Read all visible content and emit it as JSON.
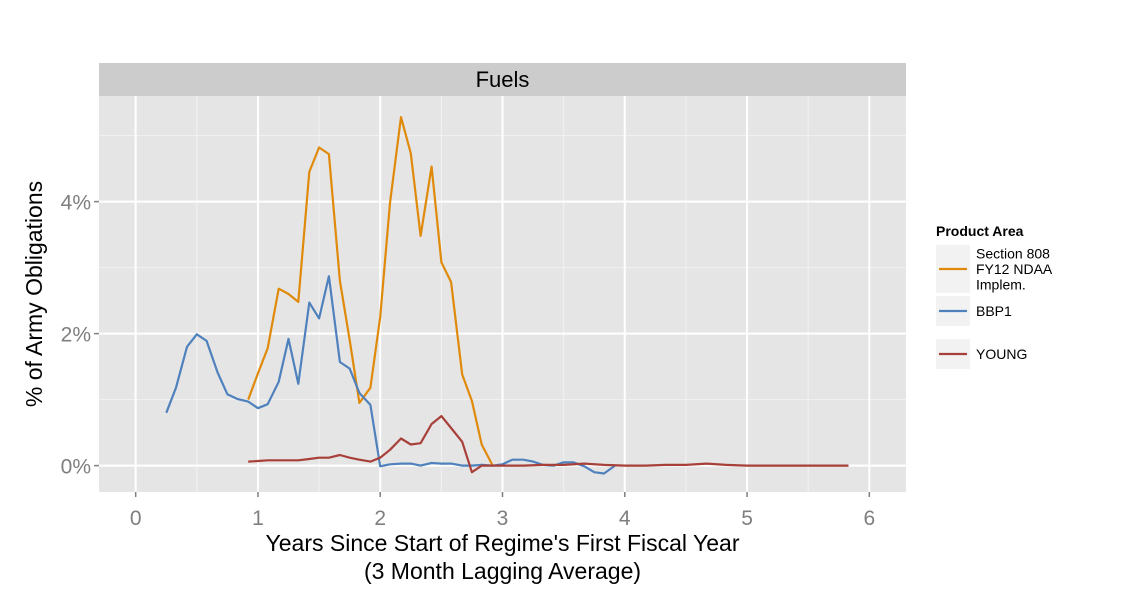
{
  "chart_data": {
    "type": "line",
    "facet": "Fuels",
    "xlabel": "Years Since Start of Regime's First Fiscal Year",
    "xlabel2": "(3 Month Lagging Average)",
    "ylabel": "% of Army Obligations",
    "xlim": [
      -0.3,
      6.3
    ],
    "ylim": [
      -0.004,
      0.056
    ],
    "xticks": [
      0,
      1,
      2,
      3,
      4,
      5,
      6
    ],
    "xtick_labels": [
      "0",
      "1",
      "2",
      "3",
      "4",
      "5",
      "6"
    ],
    "yticks": [
      0,
      0.02,
      0.04
    ],
    "ytick_labels": [
      "0%",
      "2%",
      "4%"
    ],
    "grid": true,
    "legend": {
      "title": "Product Area",
      "position": "right",
      "entries": [
        {
          "label": [
            "Section 808",
            "FY12 NDAA",
            "Implem."
          ],
          "color": "#E08A0B"
        },
        {
          "label": [
            "BBP1"
          ],
          "color": "#4F81BD"
        },
        {
          "label": [
            "YOUNG"
          ],
          "color": "#A8403A"
        }
      ]
    },
    "series": [
      {
        "name": "Section 808 FY12 NDAA Implem.",
        "color": "#E08A0B",
        "x": [
          0.92,
          1.0,
          1.08,
          1.17,
          1.25,
          1.33,
          1.42,
          1.5,
          1.58,
          1.67,
          1.75,
          1.83,
          1.92,
          2.0,
          2.08,
          2.17,
          2.25,
          2.33,
          2.42,
          2.5,
          2.58,
          2.67,
          2.75,
          2.83,
          2.92
        ],
        "y": [
          0.01,
          0.014,
          0.0178,
          0.0268,
          0.026,
          0.0248,
          0.0445,
          0.0482,
          0.0472,
          0.028,
          0.019,
          0.0095,
          0.0118,
          0.0225,
          0.0398,
          0.0528,
          0.0473,
          0.0348,
          0.0453,
          0.0308,
          0.0278,
          0.0138,
          0.0098,
          0.0032,
          0.0
        ]
      },
      {
        "name": "BBP1",
        "color": "#4F81BD",
        "x": [
          0.25,
          0.33,
          0.42,
          0.5,
          0.58,
          0.67,
          0.75,
          0.83,
          0.92,
          1.0,
          1.08,
          1.17,
          1.25,
          1.33,
          1.42,
          1.5,
          1.58,
          1.67,
          1.75,
          1.83,
          1.92,
          2.0,
          2.08,
          2.17,
          2.25,
          2.33,
          2.42,
          2.5,
          2.58,
          2.67,
          2.75,
          2.83,
          2.92,
          3.0,
          3.08,
          3.17,
          3.25,
          3.33,
          3.42,
          3.5,
          3.58,
          3.67,
          3.75,
          3.83,
          3.92
        ],
        "y": [
          0.008,
          0.0118,
          0.018,
          0.0199,
          0.0189,
          0.0141,
          0.0108,
          0.0101,
          0.0097,
          0.0087,
          0.0093,
          0.0127,
          0.0192,
          0.0124,
          0.0247,
          0.0223,
          0.0287,
          0.0157,
          0.0147,
          0.011,
          0.0092,
          -0.0001,
          0.0002,
          0.0003,
          0.0003,
          0.0,
          0.0004,
          0.0003,
          0.0003,
          0.0,
          0.0,
          0.0001,
          0.0,
          0.0002,
          0.0009,
          0.0009,
          0.0006,
          0.0001,
          0.0,
          0.0005,
          0.0005,
          -0.0001,
          -0.001,
          -0.0012,
          0.0
        ]
      },
      {
        "name": "YOUNG",
        "color": "#A8403A",
        "x": [
          0.92,
          1.0,
          1.08,
          1.17,
          1.25,
          1.33,
          1.42,
          1.5,
          1.58,
          1.67,
          1.75,
          1.83,
          1.92,
          2.0,
          2.08,
          2.17,
          2.25,
          2.33,
          2.42,
          2.5,
          2.58,
          2.67,
          2.75,
          2.83,
          2.92,
          3.0,
          3.17,
          3.33,
          3.5,
          3.67,
          3.83,
          4.0,
          4.17,
          4.33,
          4.5,
          4.67,
          4.83,
          5.0,
          5.17,
          5.33,
          5.5,
          5.67,
          5.83
        ],
        "y": [
          0.0006,
          0.0007,
          0.0008,
          0.0008,
          0.0008,
          0.0008,
          0.001,
          0.0012,
          0.0012,
          0.0016,
          0.0012,
          0.0009,
          0.0006,
          0.0012,
          0.0024,
          0.0041,
          0.0032,
          0.0034,
          0.0063,
          0.0075,
          0.0057,
          0.0036,
          -0.001,
          0.0,
          0.0,
          0.0,
          0.0,
          0.0001,
          0.0001,
          0.0003,
          0.0001,
          0.0,
          0.0,
          0.0001,
          0.0001,
          0.0003,
          0.0001,
          0.0,
          0.0,
          0.0,
          0.0,
          0.0,
          0.0
        ]
      }
    ]
  }
}
